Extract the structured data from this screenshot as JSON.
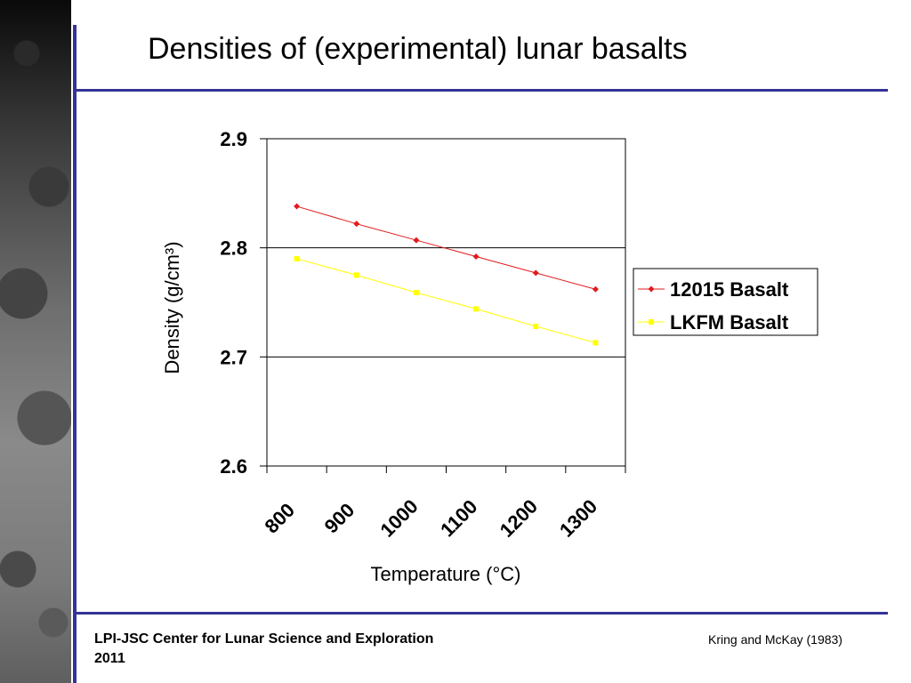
{
  "slide": {
    "title": "Densities of (experimental) lunar basalts",
    "footer_left_line1": "LPI-JSC Center for Lunar Science and Exploration",
    "footer_left_line2": "2011",
    "footer_right": "Kring and McKay (1983)",
    "accent_color": "#333399"
  },
  "chart_data": {
    "type": "line",
    "title": "",
    "xlabel": "Temperature (°C)",
    "ylabel": "Density (g/cm³)",
    "ylim": [
      2.6,
      2.9
    ],
    "y_ticks": [
      2.6,
      2.7,
      2.8,
      2.9
    ],
    "categories": [
      "800",
      "900",
      "1000",
      "1100",
      "1200",
      "1300"
    ],
    "x_gridlines": false,
    "y_gridlines": true,
    "legend_position": "right",
    "series": [
      {
        "name": "12015 Basalt",
        "color": "#e31a1c",
        "marker": "diamond",
        "values": [
          2.838,
          2.822,
          2.807,
          2.792,
          2.777,
          2.762
        ]
      },
      {
        "name": "LKFM Basalt",
        "color": "#ffff00",
        "marker": "square",
        "values": [
          2.79,
          2.775,
          2.759,
          2.744,
          2.728,
          2.713
        ]
      }
    ]
  }
}
